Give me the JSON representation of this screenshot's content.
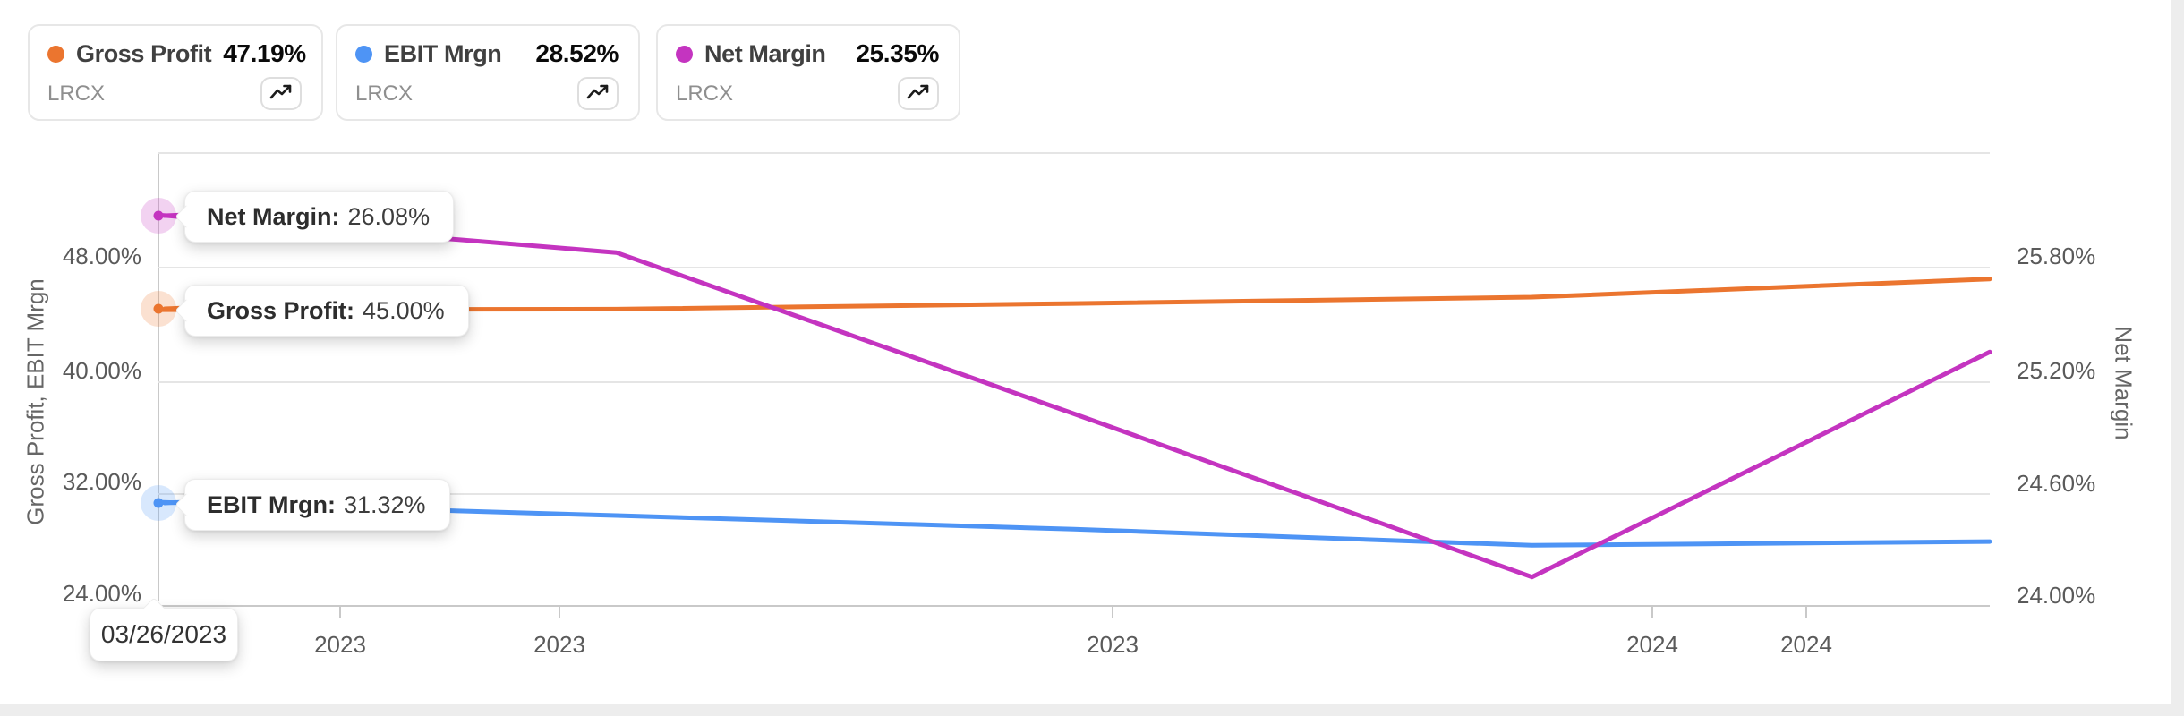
{
  "cards": [
    {
      "label": "Gross Profit",
      "value": "47.19%",
      "ticker": "LRCX",
      "color": "#EB752F"
    },
    {
      "label": "EBIT Mrgn",
      "value": "28.52%",
      "ticker": "LRCX",
      "color": "#4E94F5"
    },
    {
      "label": "Net Margin",
      "value": "25.35%",
      "ticker": "LRCX",
      "color": "#C434C0"
    }
  ],
  "tooltips": [
    {
      "label": "Net Margin:",
      "value": "26.08%"
    },
    {
      "label": "Gross Profit:",
      "value": "45.00%"
    },
    {
      "label": "EBIT Mrgn:",
      "value": "31.32%"
    }
  ],
  "date_tooltip": "03/26/2023",
  "chart_data": {
    "type": "line",
    "x_tick_labels": [
      "2023",
      "2023",
      "2023",
      "2024",
      "2024"
    ],
    "first_point_date": "03/26/2023",
    "grid": true,
    "left_axis": {
      "label": "Gross Profit, EBIT Mrgn",
      "ticks": [
        "48.00%",
        "40.00%",
        "32.00%",
        "24.00%"
      ],
      "range": [
        24,
        56
      ]
    },
    "right_axis": {
      "label": "Net Margin",
      "ticks": [
        "25.80%",
        "25.20%",
        "24.60%",
        "24.00%"
      ],
      "range": [
        24,
        26.4
      ]
    },
    "series": [
      {
        "name": "Gross Profit",
        "axis": "left",
        "color": "#EB752F",
        "values": [
          45.0,
          45.05,
          45.45,
          45.9,
          47.19
        ]
      },
      {
        "name": "EBIT Mrgn",
        "axis": "left",
        "color": "#4E94F5",
        "values": [
          31.32,
          30.37,
          29.4,
          28.25,
          28.52
        ]
      },
      {
        "name": "Net Margin",
        "axis": "right",
        "color": "#C434C0",
        "values": [
          26.08,
          25.88,
          25.02,
          24.15,
          25.35
        ]
      }
    ]
  }
}
